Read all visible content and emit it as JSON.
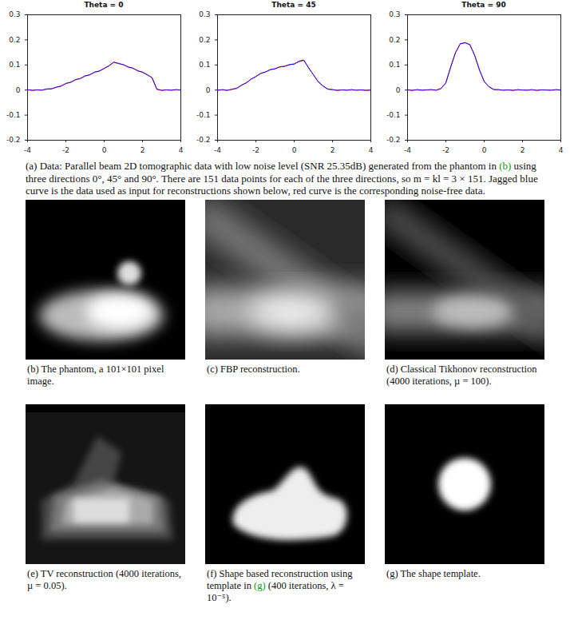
{
  "chart_data": [
    {
      "type": "line",
      "title": "Theta = 0",
      "x": [
        -4,
        -3.75,
        -3.5,
        -3.25,
        -3,
        -2.75,
        -2.5,
        -2.25,
        -2,
        -1.75,
        -1.5,
        -1.25,
        -1,
        -0.75,
        -0.5,
        -0.25,
        0,
        0.25,
        0.5,
        0.75,
        1,
        1.25,
        1.5,
        1.75,
        2,
        2.25,
        2.5,
        2.75,
        3,
        3.25,
        3.5,
        3.75,
        4
      ],
      "series": [
        {
          "color": "#ff0000",
          "values": [
            0,
            0,
            0,
            0,
            0.003,
            0.006,
            0.01,
            0.017,
            0.025,
            0.032,
            0.04,
            0.047,
            0.055,
            0.062,
            0.07,
            0.077,
            0.085,
            0.098,
            0.11,
            0.107,
            0.1,
            0.093,
            0.086,
            0.078,
            0.07,
            0.062,
            0.048,
            0.002,
            0,
            0,
            0,
            0,
            0
          ]
        },
        {
          "color": "#0000ff",
          "values": [
            0.002,
            -0.002,
            0.001,
            -0.001,
            0.005,
            0.004,
            0.012,
            0.015,
            0.027,
            0.03,
            0.042,
            0.045,
            0.057,
            0.06,
            0.072,
            0.075,
            0.087,
            0.096,
            0.112,
            0.105,
            0.102,
            0.091,
            0.088,
            0.076,
            0.072,
            0.06,
            0.05,
            0.004,
            -0.002,
            0.001,
            -0.001,
            0.002,
            0
          ]
        }
      ],
      "xlim": [
        -4,
        4
      ],
      "xticks": [
        -4,
        -2,
        0,
        2,
        4
      ],
      "ylim": [
        -0.2,
        0.3
      ],
      "yticks": [
        -0.2,
        -0.1,
        0,
        0.1,
        0.2,
        0.3
      ]
    },
    {
      "type": "line",
      "title": "Theta = 45",
      "x": [
        -4,
        -3.75,
        -3.5,
        -3.25,
        -3,
        -2.75,
        -2.5,
        -2.25,
        -2,
        -1.75,
        -1.5,
        -1.25,
        -1,
        -0.75,
        -0.5,
        -0.25,
        0,
        0.25,
        0.5,
        0.75,
        1,
        1.25,
        1.5,
        1.75,
        2,
        2.25,
        2.5,
        2.75,
        3,
        3.25,
        3.5,
        3.75,
        4
      ],
      "series": [
        {
          "color": "#ff0000",
          "values": [
            0,
            0,
            0,
            0.002,
            0.008,
            0.018,
            0.03,
            0.042,
            0.055,
            0.065,
            0.073,
            0.08,
            0.086,
            0.091,
            0.096,
            0.1,
            0.105,
            0.113,
            0.118,
            0.09,
            0.06,
            0.035,
            0.015,
            0.005,
            0.001,
            0,
            0,
            0,
            0,
            0,
            0,
            0,
            0
          ]
        },
        {
          "color": "#0000ff",
          "values": [
            -0.001,
            0.002,
            -0.002,
            0.004,
            0.006,
            0.02,
            0.028,
            0.044,
            0.053,
            0.067,
            0.071,
            0.082,
            0.084,
            0.093,
            0.094,
            0.102,
            0.103,
            0.115,
            0.12,
            0.088,
            0.062,
            0.033,
            0.017,
            0.003,
            0.002,
            -0.002,
            0.001,
            -0.001,
            0.002,
            -0.001,
            0.001,
            -0.002,
            0
          ]
        }
      ],
      "xlim": [
        -4,
        4
      ],
      "xticks": [
        -4,
        -2,
        0,
        2,
        4
      ],
      "ylim": [
        -0.2,
        0.3
      ],
      "yticks": [
        -0.2,
        -0.1,
        0,
        0.1,
        0.2,
        0.3
      ]
    },
    {
      "type": "line",
      "title": "Theta = 90",
      "x": [
        -4,
        -3.75,
        -3.5,
        -3.25,
        -3,
        -2.75,
        -2.5,
        -2.25,
        -2,
        -1.75,
        -1.5,
        -1.25,
        -1,
        -0.75,
        -0.5,
        -0.25,
        0,
        0.25,
        0.5,
        0.75,
        1,
        1.25,
        1.5,
        1.75,
        2,
        2.25,
        2.5,
        2.75,
        3,
        3.25,
        3.5,
        3.75,
        4
      ],
      "series": [
        {
          "color": "#ff0000",
          "values": [
            0,
            0,
            0,
            0,
            0,
            0,
            0,
            0.005,
            0.03,
            0.09,
            0.15,
            0.183,
            0.19,
            0.18,
            0.14,
            0.08,
            0.035,
            0.012,
            0.003,
            0,
            0,
            0,
            0,
            0,
            0,
            0,
            0,
            0,
            0,
            0,
            0,
            0,
            0
          ]
        },
        {
          "color": "#0000ff",
          "values": [
            0.001,
            -0.002,
            0.002,
            -0.001,
            0.001,
            0.002,
            -0.001,
            0.007,
            0.028,
            0.092,
            0.148,
            0.185,
            0.188,
            0.182,
            0.138,
            0.082,
            0.033,
            0.014,
            0.001,
            0.002,
            -0.001,
            0.001,
            -0.002,
            0.002,
            0,
            -0.001,
            0.002,
            -0.002,
            0.001,
            0,
            -0.001,
            0.002,
            0
          ]
        }
      ],
      "xlim": [
        -4,
        4
      ],
      "xticks": [
        -4,
        -2,
        0,
        2,
        4
      ],
      "ylim": [
        -0.2,
        0.3
      ],
      "yticks": [
        -0.2,
        -0.1,
        0,
        0.1,
        0.2,
        0.3
      ]
    }
  ],
  "caption": [
    "(a) Data: Parallel beam 2D tomographic data with low noise level (SNR 25.35dB) generated from the phantom in ",
    {
      "ref": "(b)"
    },
    " using three directions 0°, 45° and 90°. There are 151 data points for each of the three directions, so m = kl = 3 × 151. Jagged blue curve is the data used as input for reconstructions shown below, red curve is the corresponding noise-free data."
  ],
  "panels": [
    {
      "caption": [
        "(b) The phantom, a 101×101 pixel image."
      ]
    },
    {
      "caption": [
        "(c) FBP reconstruction."
      ]
    },
    {
      "caption": [
        "(d) Classical Tikhonov reconstruction (4000 iterations, µ = 100)."
      ]
    },
    {
      "caption": [
        "(e) TV reconstruction (4000 iterations, µ = 0.05)."
      ]
    },
    {
      "caption": [
        "(f) Shape based reconstruction using template in ",
        {
          "ref": "(g)"
        },
        " (400 iterations, λ = 10⁻⁵)."
      ]
    },
    {
      "caption": [
        "(g) The shape template."
      ]
    }
  ]
}
